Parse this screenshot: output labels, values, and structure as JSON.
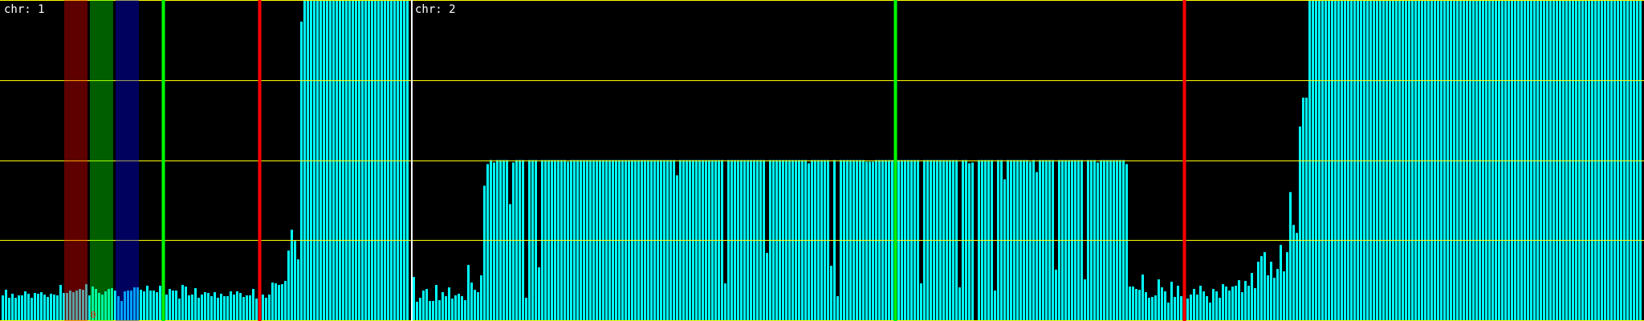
{
  "chart_data": [
    {
      "type": "bar",
      "label": "chr: 1",
      "ylim": [
        0,
        4
      ],
      "grid_y": [
        0,
        1,
        2,
        3,
        4
      ],
      "grid_color": "#ffff00",
      "bar_color": "#00ffff",
      "vertical_markers": [
        {
          "bar_index": 50,
          "color": "#00ff00"
        },
        {
          "bar_index": 80,
          "color": "#ff0000"
        }
      ],
      "bands": [
        {
          "from": 20,
          "to": 26,
          "color": "#ff0000"
        },
        {
          "from": 28,
          "to": 34,
          "color": "#00ff00"
        },
        {
          "from": 36,
          "to": 42,
          "color": "#0000ff"
        }
      ],
      "annotations": [
        {
          "text": "0",
          "bar_index": 28,
          "color": "#ff2020"
        }
      ],
      "values": [
        0.31,
        0.38,
        0.28,
        0.33,
        0.28,
        0.31,
        0.31,
        0.36,
        0.33,
        0.28,
        0.34,
        0.33,
        0.35,
        0.32,
        0.29,
        0.33,
        0.32,
        0.31,
        0.44,
        0.34,
        0.34,
        0.37,
        0.35,
        0.37,
        0.39,
        0.38,
        0.45,
        0.31,
        0.42,
        0.39,
        0.34,
        0.32,
        0.36,
        0.39,
        0.4,
        0.37,
        0.3,
        0.24,
        0.36,
        0.37,
        0.37,
        0.41,
        0.41,
        0.38,
        0.36,
        0.43,
        0.37,
        0.37,
        0.35,
        0.43,
        0.37,
        0.32,
        0.39,
        0.37,
        0.37,
        0.27,
        0.44,
        0.42,
        0.31,
        0.32,
        0.4,
        0.28,
        0.32,
        0.35,
        0.34,
        0.3,
        0.35,
        0.28,
        0.33,
        0.3,
        0.3,
        0.36,
        0.32,
        0.36,
        0.34,
        0.29,
        0.31,
        0.31,
        0.39,
        0.27,
        0.3,
        0.32,
        0.28,
        0.32,
        0.47,
        0.46,
        0.44,
        0.45,
        0.49,
        0.87,
        1.13,
        0.99,
        0.76,
        3.73,
        4,
        4,
        4,
        4,
        4,
        4,
        4,
        4,
        4,
        4,
        4,
        4,
        4,
        4,
        4,
        4,
        4,
        4,
        4,
        4,
        4,
        4,
        4,
        4,
        4,
        4,
        4,
        4,
        4,
        4,
        4,
        4,
        4
      ]
    },
    {
      "type": "bar",
      "label": "chr: 2",
      "ylim": [
        0,
        4
      ],
      "grid_y": [
        0,
        1,
        2,
        3,
        4
      ],
      "grid_color": "#ffff00",
      "bar_color": "#00ffff",
      "vertical_markers": [
        {
          "bar_index": 150,
          "color": "#00ff00"
        },
        {
          "bar_index": 240,
          "color": "#ff0000"
        }
      ],
      "bands": [],
      "annotations": [],
      "values": [
        0.54,
        0.23,
        0.28,
        0.37,
        0.39,
        0.24,
        0.24,
        0.44,
        0.25,
        0.35,
        0.3,
        0.41,
        0.27,
        0.31,
        0.33,
        0.3,
        0.25,
        0.69,
        0.47,
        0.38,
        0.35,
        0.56,
        1.68,
        1.95,
        2,
        1.97,
        2,
        2,
        2,
        2,
        1.45,
        1.97,
        2,
        2,
        2,
        0.28,
        2,
        2,
        2,
        0.66,
        2,
        2,
        2,
        2,
        2,
        2,
        2,
        2,
        1.98,
        2,
        2,
        2,
        2,
        2,
        2,
        2,
        2,
        2,
        2,
        2,
        2,
        2,
        2,
        2,
        2,
        2,
        2,
        2,
        2,
        2,
        2,
        2,
        2,
        2,
        2,
        2,
        2,
        2,
        2,
        2,
        2,
        2,
        1.81,
        2,
        2,
        2,
        2,
        2,
        2,
        2,
        2,
        2,
        2,
        2,
        2,
        2,
        2,
        0.46,
        2,
        2,
        2,
        2,
        2,
        2,
        2,
        2,
        2,
        2,
        2,
        2,
        0.84,
        2,
        2,
        2,
        2,
        2,
        2,
        2,
        2,
        2,
        2,
        2,
        2,
        1.96,
        2,
        2,
        2,
        2,
        2,
        2,
        0.68,
        2,
        0.3,
        2,
        2,
        2,
        2,
        2,
        2,
        2,
        2,
        1.98,
        1.98,
        1.98,
        2,
        2,
        2,
        2,
        2,
        2,
        2,
        2,
        2,
        2,
        2,
        2,
        2,
        2,
        0.46,
        2,
        2,
        2,
        2,
        2,
        2,
        2,
        2,
        2,
        2,
        2,
        0.41,
        2,
        2,
        1.96,
        1.97,
        0,
        2,
        2,
        2,
        2,
        2,
        0.37,
        2,
        2,
        1.76,
        2,
        2,
        2,
        2,
        2,
        2,
        2,
        1.98,
        2,
        1.85,
        2,
        2,
        2,
        2,
        2,
        0.63,
        2,
        2,
        2,
        2,
        2,
        2,
        2,
        2,
        0.51,
        2,
        2,
        2,
        1.97,
        2,
        2,
        2,
        2,
        2,
        2,
        2,
        2,
        1.95,
        0.42,
        0.42,
        0.39,
        0.38,
        0.57,
        0.35,
        0.28,
        0.29,
        0.31,
        0.51,
        0.41,
        0.36,
        0.22,
        0.48,
        0.29,
        0.43,
        0.3,
        0.31,
        0.27,
        0.32,
        0.39,
        0.32,
        0.43,
        0.36,
        0.3,
        0.22,
        0.39,
        0.36,
        0.28,
        0.45,
        0.42,
        0.37,
        0.42,
        0.43,
        0.5,
        0.35,
        0.49,
        0.43,
        0.59,
        0.4,
        0.73,
        0.8,
        0.85,
        0.56,
        0.73,
        0.53,
        0.64,
        0.94,
        0.61,
        0.85,
        1.6,
        1.19,
        1.09,
        2.42,
        2.78,
        2.78,
        4,
        4,
        4,
        4,
        4,
        4,
        4,
        4,
        4,
        4,
        4,
        4,
        4,
        4,
        4,
        4,
        4,
        4,
        4,
        4,
        4,
        4,
        4,
        4,
        4,
        4,
        4,
        4,
        4,
        4,
        4,
        4,
        4,
        4,
        4,
        4,
        4,
        4,
        4,
        4,
        4,
        4,
        4,
        4,
        4,
        4,
        4,
        4,
        4,
        4,
        4,
        4,
        4,
        4,
        4,
        4,
        4,
        4,
        4,
        4,
        4,
        4,
        4,
        4,
        4,
        4,
        4,
        4,
        4,
        4,
        4,
        4,
        4,
        4,
        4,
        4,
        4,
        4,
        4,
        4,
        4,
        4,
        4,
        4,
        4,
        4,
        4,
        4,
        4,
        4,
        4,
        4,
        4,
        4,
        4,
        4,
        4,
        4,
        4,
        4,
        4,
        4,
        4,
        4
      ]
    }
  ]
}
